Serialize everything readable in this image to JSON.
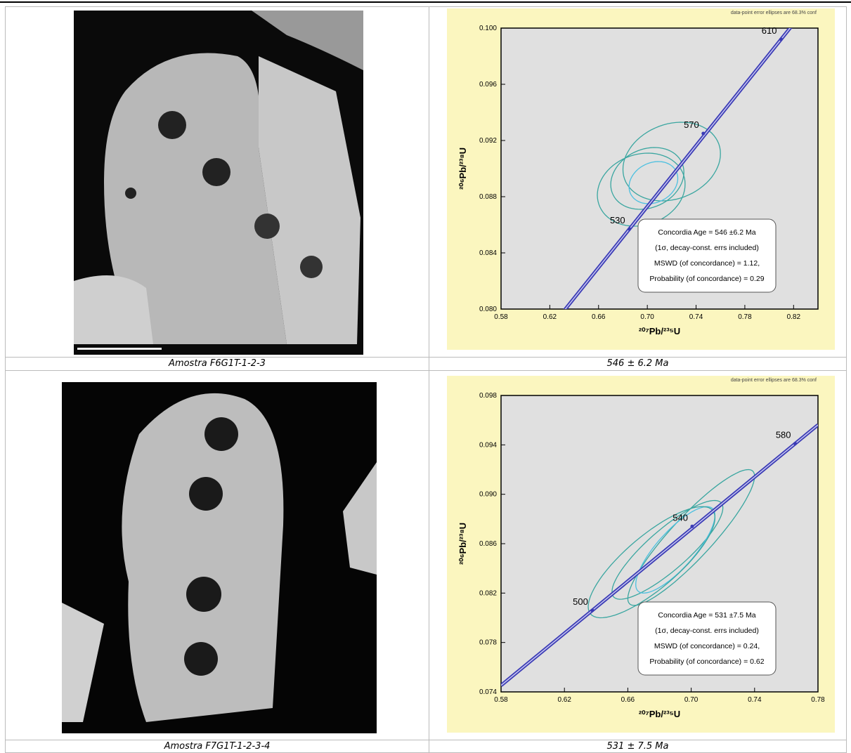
{
  "rows": [
    {
      "sample": "Amostra F6G1T-1-2-3",
      "age": "546 ± 6.2 Ma",
      "plot": {
        "type": "concordia",
        "note": "data-point error ellipses are 68.3% conf",
        "xlabel": "²⁰⁷Pb/²³⁵U",
        "ylabel": "²⁰⁶Pb/²³⁸U",
        "xlim": [
          0.58,
          0.84
        ],
        "ylim": [
          0.08,
          0.1
        ],
        "xticks": [
          0.58,
          0.62,
          0.66,
          {
            "value": 0.7,
            "label": "0.70"
          },
          0.74,
          0.78,
          0.82
        ],
        "yticks": [
          {
            "value": 0.08,
            "label": "0.080"
          },
          0.084,
          0.088,
          0.092,
          0.096,
          {
            "value": 0.1,
            "label": "0.100"
          }
        ],
        "curve": [
          {
            "age": 530,
            "x": 0.6853,
            "y": 0.0857
          },
          {
            "age": 570,
            "x": 0.7459,
            "y": 0.0925
          },
          {
            "age": 610,
            "x": 0.8097,
            "y": 0.0992
          }
        ],
        "ellipses": [
          {
            "x": 0.72,
            "y": 0.0905,
            "sx": 0.04,
            "sy": 0.0028,
            "rho": 0.2,
            "color": "#3aa6a0"
          },
          {
            "x": 0.7,
            "y": 0.0893,
            "sx": 0.03,
            "sy": 0.0022,
            "rho": 0.2,
            "color": "#3aa6a0"
          },
          {
            "x": 0.695,
            "y": 0.0885,
            "sx": 0.036,
            "sy": 0.0026,
            "rho": 0.15,
            "color": "#3aa6a0"
          },
          {
            "x": 0.705,
            "y": 0.089,
            "sx": 0.02,
            "sy": 0.0015,
            "rho": 0.2,
            "color": "#4cc0e0"
          }
        ],
        "box": [
          "Concordia Age = 546 ±6.2 Ma",
          "(1σ, decay-const. errs included)",
          "MSWD (of concordance) = 1.12,",
          "Probability (of concordance) = 0.29"
        ]
      }
    },
    {
      "sample": "Amostra F7G1T-1-2-3-4",
      "age": "531 ± 7.5 Ma",
      "plot": {
        "type": "concordia",
        "note": "data-point error ellipses are 68.3% conf",
        "xlabel": "²⁰⁷Pb/²³⁵U",
        "ylabel": "²⁰⁶Pb/²³⁸U",
        "xlim": [
          0.58,
          0.78
        ],
        "ylim": [
          0.074,
          0.098
        ],
        "xticks": [
          0.58,
          0.62,
          0.66,
          {
            "value": 0.7,
            "label": "0.70"
          },
          0.74,
          0.78
        ],
        "yticks": [
          0.074,
          0.078,
          0.082,
          0.086,
          {
            "value": 0.09,
            "label": "0.090"
          },
          0.094,
          0.098
        ],
        "curve": [
          {
            "age": 500,
            "x": 0.6376,
            "y": 0.0806
          },
          {
            "age": 540,
            "x": 0.7006,
            "y": 0.0874
          },
          {
            "age": 580,
            "x": 0.7656,
            "y": 0.0941
          }
        ],
        "ellipses": [
          {
            "x": 0.7,
            "y": 0.0865,
            "sx": 0.04,
            "sy": 0.0055,
            "rho": 0.9,
            "color": "#3aa6a0"
          },
          {
            "x": 0.685,
            "y": 0.0855,
            "sx": 0.035,
            "sy": 0.004,
            "rho": 0.85,
            "color": "#3aa6a0"
          },
          {
            "x": 0.69,
            "y": 0.0855,
            "sx": 0.025,
            "sy": 0.0035,
            "rho": 0.8,
            "color": "#4cc0e0"
          },
          {
            "x": 0.675,
            "y": 0.0845,
            "sx": 0.04,
            "sy": 0.0045,
            "rho": 0.8,
            "color": "#3aa6a0"
          }
        ],
        "box": [
          "Concordia Age = 531 ±7.5 Ma",
          "(1σ, decay-const. errs included)",
          "MSWD (of concordance) = 0.24,",
          "Probability (of concordance) = 0.62"
        ]
      }
    }
  ]
}
